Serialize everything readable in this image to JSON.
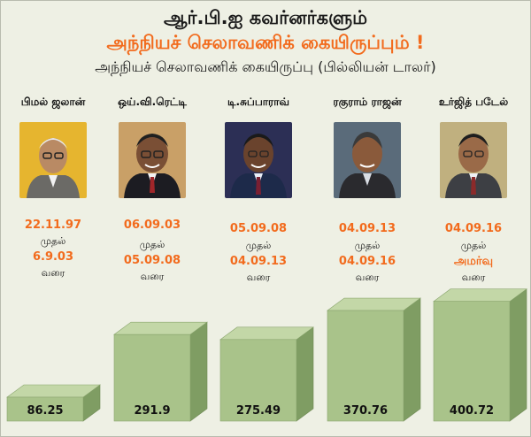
{
  "title_line1": "ஆர்.பி.ஐ கவர்னர்களும்",
  "title_line2": "அந்நியச் செலாவணிக் கையிருப்பும் !",
  "subtitle": "அந்நியச் செலாவணிக் கையிருப்பு (பில்லியன் டாலர்)",
  "colors": {
    "accent": "#f26b1d",
    "bar_front": "#a9c38a",
    "bar_top": "#c3d7a7",
    "bar_side": "#7f9d63",
    "background": "#eef0e4"
  },
  "governors": [
    {
      "name": "பிமல் ஜலான்",
      "date_from": "22.11.97",
      "from_label": "முதல்",
      "date_to": "6.9.03",
      "to_label": "வரை",
      "photo_bg": "#e6b52f"
    },
    {
      "name": "ஒய்.வி.ரெட்டி",
      "date_from": "06.09.03",
      "from_label": "முதல்",
      "date_to": "05.09.08",
      "to_label": "வரை",
      "photo_bg": "#c9a067"
    },
    {
      "name": "டி.சுப்பாராவ்",
      "date_from": "05.09.08",
      "from_label": "முதல்",
      "date_to": "04.09.13",
      "to_label": "வரை",
      "photo_bg": "#2c2f55"
    },
    {
      "name": "ரகுராம் ராஜன்",
      "date_from": "04.09.13",
      "from_label": "முதல்",
      "date_to": "04.09.16",
      "to_label": "வரை",
      "photo_bg": "#5a6b7a"
    },
    {
      "name": "உர்ஜித் படேல்",
      "date_from": "04.09.16",
      "from_label": "முதல்",
      "date_to": "அமர்வு",
      "to_label": "வரை",
      "photo_bg": "#c0b07f"
    }
  ],
  "chart_data": {
    "type": "bar",
    "title": "அந்நியச் செலாவணிக் கையிருப்பு (பில்லியன் டாலர்)",
    "categories": [
      "பிமல் ஜலான்",
      "ஒய்.வி.ரெட்டி",
      "டி.சுப்பாராவ்",
      "ரகுராம் ராஜன்",
      "உர்ஜித் படேல்"
    ],
    "values": [
      86.25,
      291.9,
      275.49,
      370.76,
      400.72
    ],
    "value_labels": [
      "86.25",
      "291.9",
      "275.49",
      "370.76",
      "400.72"
    ],
    "grid": false,
    "legend": "none"
  }
}
